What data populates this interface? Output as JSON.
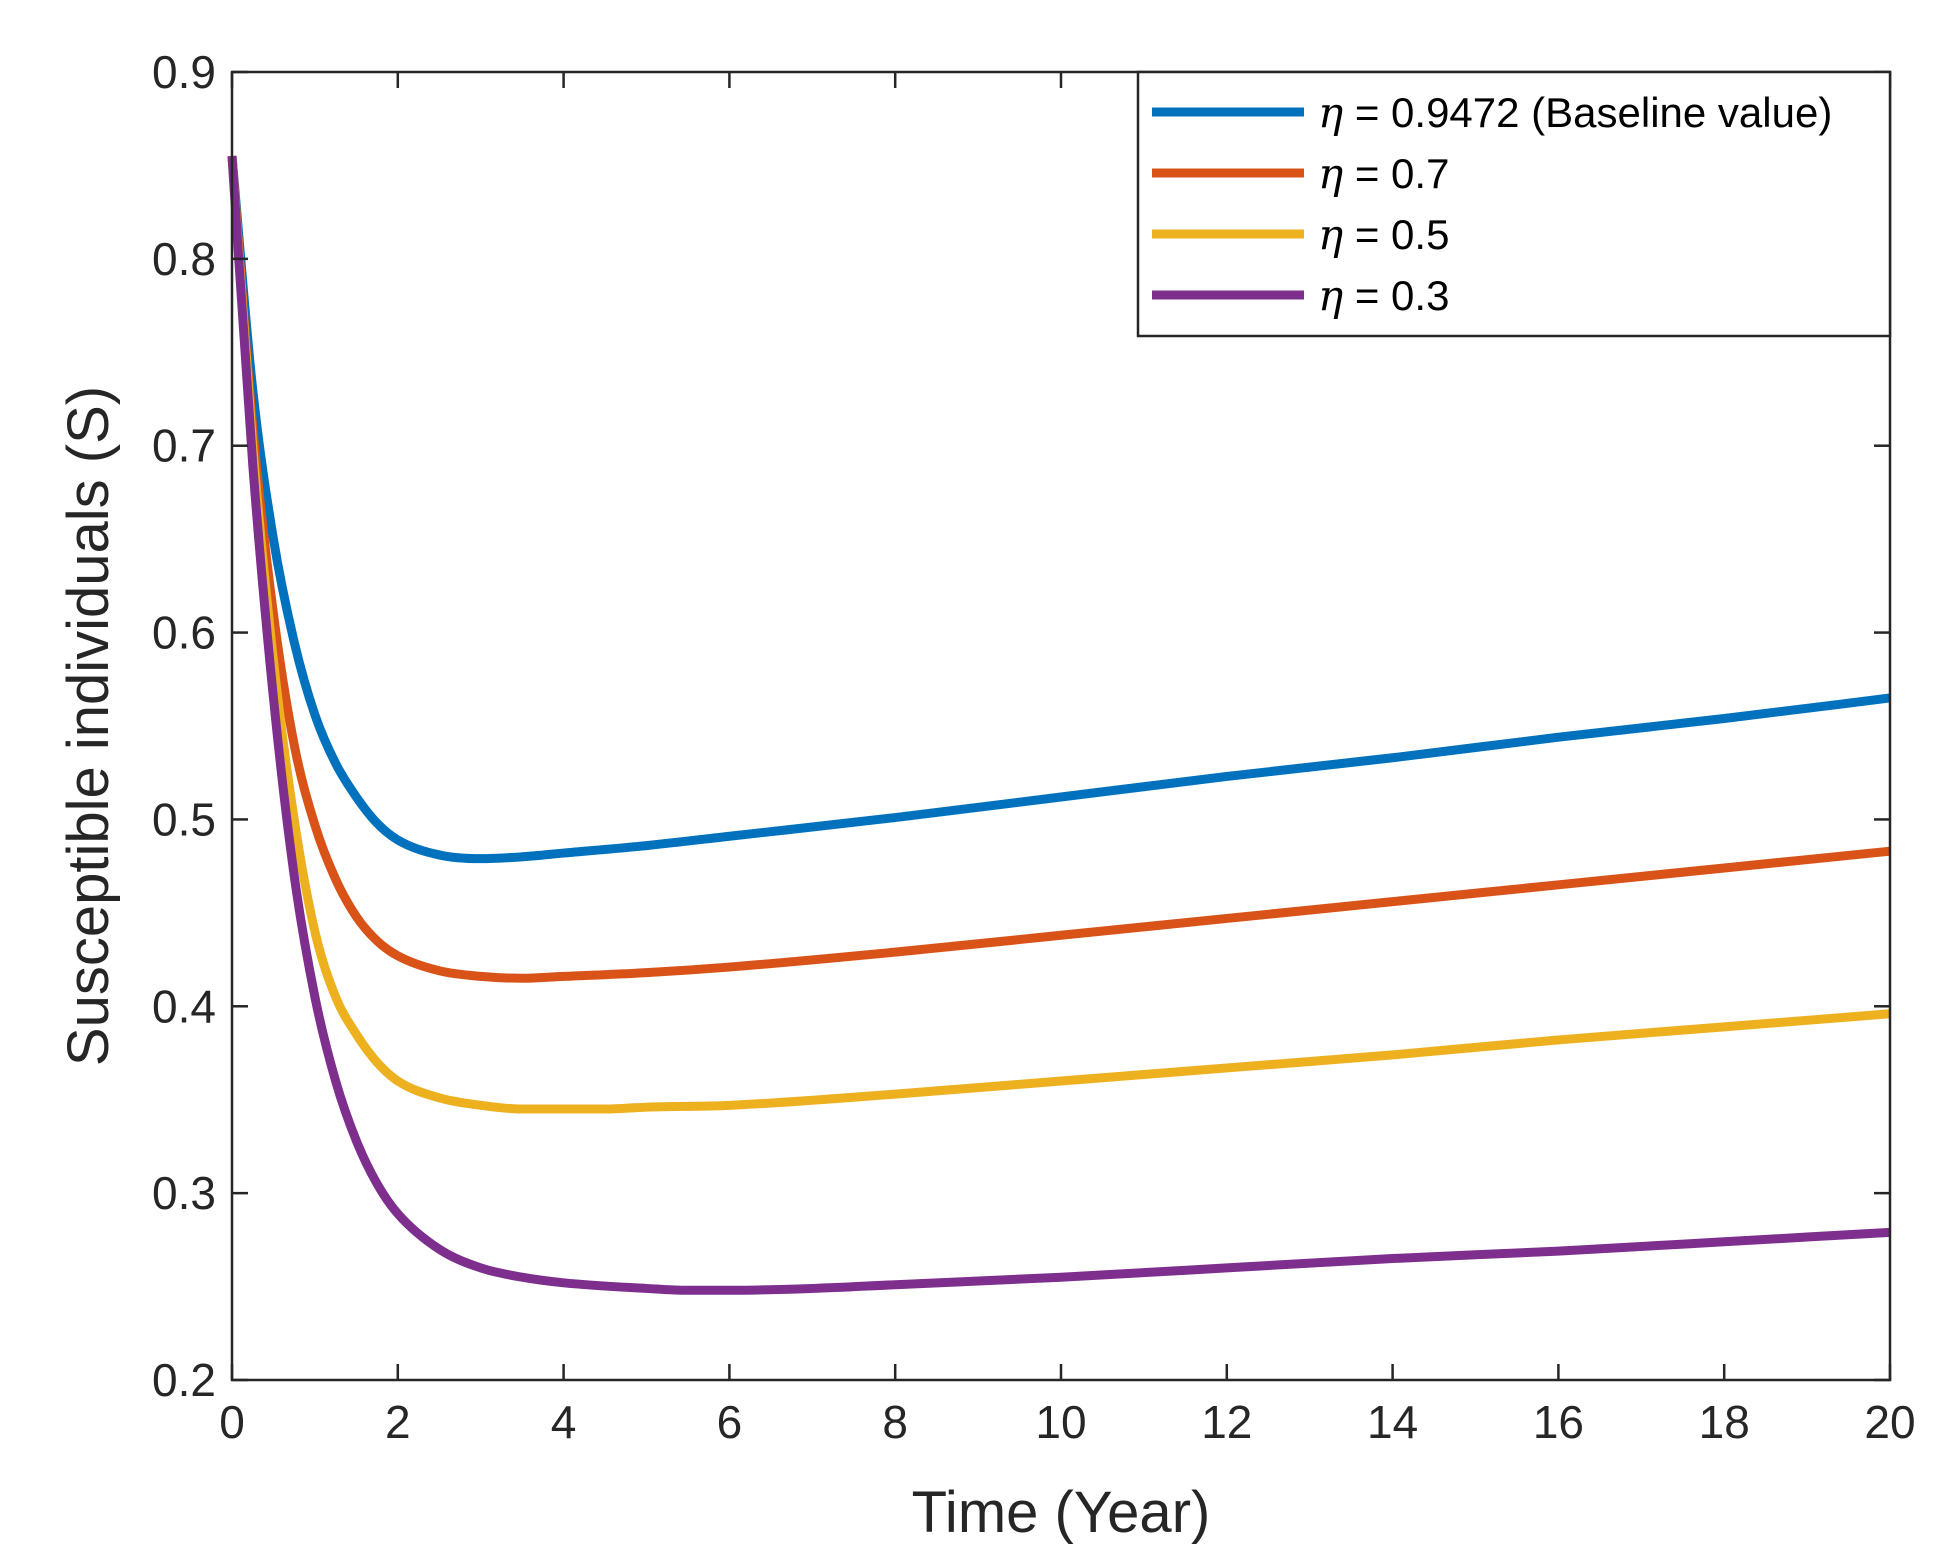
{
  "chart_data": {
    "type": "line",
    "title": "",
    "xlabel": "Time (Year)",
    "ylabel": "Susceptible individuals (S)",
    "xlim": [
      0,
      20
    ],
    "ylim": [
      0.2,
      0.9
    ],
    "xticks": [
      0,
      2,
      4,
      6,
      8,
      10,
      12,
      14,
      16,
      18,
      20
    ],
    "xtick_labels": [
      "0",
      "2",
      "4",
      "6",
      "8",
      "10",
      "12",
      "14",
      "16",
      "18",
      "20"
    ],
    "yticks": [
      0.2,
      0.3,
      0.4,
      0.5,
      0.6,
      0.7,
      0.8,
      0.9
    ],
    "ytick_labels": [
      "0.2",
      "0.3",
      "0.4",
      "0.5",
      "0.6",
      "0.7",
      "0.8",
      "0.9"
    ],
    "grid": false,
    "legend_position": "top-right",
    "series": [
      {
        "name": "η = 0.9472 (Baseline value)",
        "legend_symbol": "η",
        "legend_text": "= 0.9472 (Baseline value)",
        "color": "#0072BD",
        "x": [
          0,
          0.25,
          0.5,
          0.75,
          1,
          1.25,
          1.5,
          1.75,
          2,
          2.5,
          3,
          3.5,
          4,
          5,
          6,
          8,
          10,
          12,
          14,
          16,
          18,
          20
        ],
        "y": [
          0.855,
          0.73,
          0.65,
          0.595,
          0.556,
          0.53,
          0.512,
          0.498,
          0.489,
          0.481,
          0.479,
          0.48,
          0.482,
          0.486,
          0.491,
          0.501,
          0.512,
          0.523,
          0.533,
          0.544,
          0.554,
          0.565
        ]
      },
      {
        "name": "η = 0.7",
        "legend_symbol": "η",
        "legend_text": "= 0.7",
        "color": "#D95319",
        "x": [
          0,
          0.25,
          0.5,
          0.75,
          1,
          1.25,
          1.5,
          1.75,
          2,
          2.5,
          3,
          3.5,
          4,
          5,
          6,
          8,
          10,
          12,
          14,
          16,
          18,
          20
        ],
        "y": [
          0.855,
          0.71,
          0.61,
          0.54,
          0.497,
          0.468,
          0.448,
          0.435,
          0.427,
          0.419,
          0.416,
          0.415,
          0.416,
          0.418,
          0.421,
          0.429,
          0.438,
          0.447,
          0.456,
          0.465,
          0.474,
          0.483
        ]
      },
      {
        "name": "η = 0.5",
        "legend_symbol": "η",
        "legend_text": "= 0.5",
        "color": "#EDB120",
        "x": [
          0,
          0.25,
          0.5,
          0.75,
          1,
          1.25,
          1.5,
          1.75,
          2,
          2.5,
          3,
          3.5,
          4,
          4.5,
          5,
          6,
          8,
          10,
          12,
          14,
          16,
          18,
          20
        ],
        "y": [
          0.855,
          0.7,
          0.585,
          0.5,
          0.44,
          0.405,
          0.385,
          0.37,
          0.36,
          0.351,
          0.347,
          0.345,
          0.345,
          0.345,
          0.346,
          0.347,
          0.353,
          0.36,
          0.367,
          0.374,
          0.382,
          0.389,
          0.396
        ]
      },
      {
        "name": "η = 0.3",
        "legend_symbol": "η",
        "legend_text": "= 0.3",
        "color": "#7E2F8E",
        "x": [
          0,
          0.25,
          0.5,
          0.75,
          1,
          1.25,
          1.5,
          1.75,
          2,
          2.5,
          3,
          3.5,
          4,
          5,
          5.5,
          6,
          7,
          8,
          10,
          12,
          14,
          16,
          18,
          20
        ],
        "y": [
          0.855,
          0.69,
          0.565,
          0.47,
          0.405,
          0.36,
          0.328,
          0.305,
          0.289,
          0.27,
          0.26,
          0.255,
          0.252,
          0.249,
          0.248,
          0.248,
          0.249,
          0.251,
          0.255,
          0.26,
          0.265,
          0.269,
          0.274,
          0.279
        ]
      }
    ]
  }
}
